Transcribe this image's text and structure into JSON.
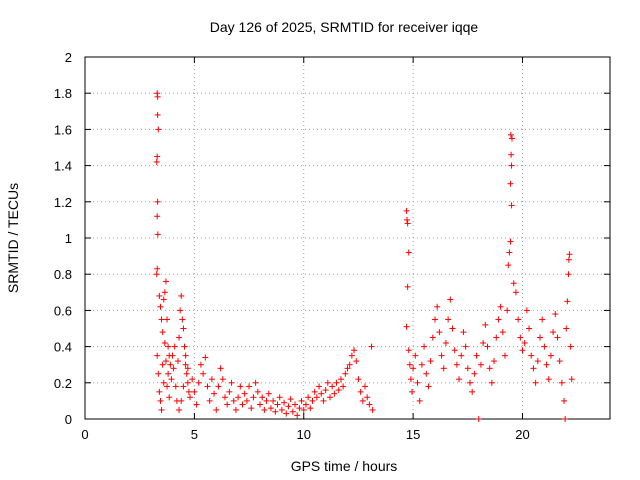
{
  "chart_data": {
    "type": "scatter",
    "title": "Day 126 of 2025, SRMTID for receiver iqqe",
    "xlabel": "GPS time / hours",
    "ylabel": "SRMTID / TECUs",
    "xlim": [
      0,
      24
    ],
    "ylim": [
      0,
      2
    ],
    "x_ticks": [
      0,
      5,
      10,
      15,
      20
    ],
    "y_ticks": [
      0,
      0.2,
      0.4,
      0.6,
      0.8,
      1,
      1.2,
      1.4,
      1.6,
      1.8,
      2
    ],
    "x_tick_labels": [
      "0",
      "5",
      "10",
      "15",
      "20"
    ],
    "y_tick_labels": [
      "0",
      "0.2",
      "0.4",
      "0.6",
      "0.8",
      "1",
      "1.2",
      "1.4",
      "1.6",
      "1.8",
      "2"
    ],
    "grid": true,
    "marker": "+",
    "series": [
      {
        "name": "SRMTID",
        "color": "#ff0000",
        "points": [
          [
            3.3,
            1.8
          ],
          [
            3.32,
            1.78
          ],
          [
            3.32,
            1.68
          ],
          [
            3.35,
            1.6
          ],
          [
            3.3,
            1.45
          ],
          [
            3.28,
            1.42
          ],
          [
            3.32,
            1.2
          ],
          [
            3.3,
            1.12
          ],
          [
            3.33,
            1.02
          ],
          [
            3.3,
            0.83
          ],
          [
            3.28,
            0.8
          ],
          [
            3.4,
            0.68
          ],
          [
            3.45,
            0.62
          ],
          [
            3.5,
            0.55
          ],
          [
            3.55,
            0.48
          ],
          [
            3.6,
            0.66
          ],
          [
            3.65,
            0.7
          ],
          [
            3.7,
            0.76
          ],
          [
            3.75,
            0.55
          ],
          [
            3.8,
            0.4
          ],
          [
            3.85,
            0.35
          ],
          [
            3.3,
            0.35
          ],
          [
            3.35,
            0.25
          ],
          [
            3.4,
            0.15
          ],
          [
            3.45,
            0.1
          ],
          [
            3.5,
            0.05
          ],
          [
            3.55,
            0.3
          ],
          [
            3.6,
            0.2
          ],
          [
            3.65,
            0.42
          ],
          [
            3.7,
            0.32
          ],
          [
            3.75,
            0.18
          ],
          [
            3.8,
            0.25
          ],
          [
            3.85,
            0.12
          ],
          [
            3.9,
            0.3
          ],
          [
            3.95,
            0.22
          ],
          [
            4.0,
            0.35
          ],
          [
            4.05,
            0.28
          ],
          [
            4.1,
            0.4
          ],
          [
            4.15,
            0.18
          ],
          [
            4.2,
            0.1
          ],
          [
            4.25,
            0.32
          ],
          [
            4.3,
            0.45
          ],
          [
            4.35,
            0.6
          ],
          [
            4.4,
            0.68
          ],
          [
            4.45,
            0.55
          ],
          [
            4.5,
            0.5
          ],
          [
            4.55,
            0.4
          ],
          [
            4.6,
            0.3
          ],
          [
            4.65,
            0.25
          ],
          [
            4.7,
            0.2
          ],
          [
            4.75,
            0.15
          ],
          [
            4.3,
            0.05
          ],
          [
            4.4,
            0.1
          ],
          [
            4.5,
            0.18
          ],
          [
            4.6,
            0.35
          ],
          [
            4.7,
            0.28
          ],
          [
            4.8,
            0.12
          ],
          [
            4.9,
            0.22
          ],
          [
            5.0,
            0.15
          ],
          [
            5.1,
            0.08
          ],
          [
            5.2,
            0.2
          ],
          [
            5.3,
            0.3
          ],
          [
            5.4,
            0.25
          ],
          [
            5.5,
            0.34
          ],
          [
            5.6,
            0.18
          ],
          [
            5.7,
            0.1
          ],
          [
            5.8,
            0.22
          ],
          [
            5.9,
            0.14
          ],
          [
            6.0,
            0.05
          ],
          [
            6.1,
            0.18
          ],
          [
            6.2,
            0.28
          ],
          [
            6.3,
            0.22
          ],
          [
            6.4,
            0.12
          ],
          [
            6.5,
            0.08
          ],
          [
            6.6,
            0.15
          ],
          [
            6.7,
            0.2
          ],
          [
            6.8,
            0.1
          ],
          [
            6.9,
            0.05
          ],
          [
            7.0,
            0.12
          ],
          [
            7.1,
            0.18
          ],
          [
            7.2,
            0.08
          ],
          [
            7.3,
            0.14
          ],
          [
            7.4,
            0.1
          ],
          [
            7.5,
            0.18
          ],
          [
            7.6,
            0.06
          ],
          [
            7.7,
            0.12
          ],
          [
            7.8,
            0.2
          ],
          [
            7.9,
            0.15
          ],
          [
            8.0,
            0.08
          ],
          [
            8.1,
            0.12
          ],
          [
            8.2,
            0.05
          ],
          [
            8.3,
            0.1
          ],
          [
            8.4,
            0.14
          ],
          [
            8.5,
            0.06
          ],
          [
            8.6,
            0.1
          ],
          [
            8.7,
            0.04
          ],
          [
            8.8,
            0.08
          ],
          [
            8.9,
            0.12
          ],
          [
            9.0,
            0.05
          ],
          [
            9.1,
            0.09
          ],
          [
            9.2,
            0.03
          ],
          [
            9.3,
            0.07
          ],
          [
            9.4,
            0.11
          ],
          [
            9.5,
            0.04
          ],
          [
            9.6,
            0.08
          ],
          [
            9.7,
            0.02
          ],
          [
            9.8,
            0.06
          ],
          [
            9.9,
            0.1
          ],
          [
            10.0,
            0.05
          ],
          [
            10.1,
            0.08
          ],
          [
            10.2,
            0.12
          ],
          [
            10.3,
            0.06
          ],
          [
            10.4,
            0.1
          ],
          [
            10.5,
            0.15
          ],
          [
            10.6,
            0.12
          ],
          [
            10.7,
            0.18
          ],
          [
            10.8,
            0.14
          ],
          [
            10.9,
            0.1
          ],
          [
            11.0,
            0.16
          ],
          [
            11.1,
            0.2
          ],
          [
            11.2,
            0.12
          ],
          [
            11.3,
            0.18
          ],
          [
            11.4,
            0.14
          ],
          [
            11.5,
            0.2
          ],
          [
            11.6,
            0.16
          ],
          [
            11.7,
            0.22
          ],
          [
            11.8,
            0.18
          ],
          [
            11.9,
            0.25
          ],
          [
            12.0,
            0.28
          ],
          [
            12.1,
            0.3
          ],
          [
            12.2,
            0.35
          ],
          [
            12.3,
            0.38
          ],
          [
            12.4,
            0.32
          ],
          [
            12.5,
            0.22
          ],
          [
            12.6,
            0.15
          ],
          [
            12.7,
            0.1
          ],
          [
            12.8,
            0.18
          ],
          [
            12.9,
            0.12
          ],
          [
            13.0,
            0.08
          ],
          [
            13.1,
            0.4
          ],
          [
            13.15,
            0.05
          ],
          [
            14.7,
            1.15
          ],
          [
            14.72,
            1.1
          ],
          [
            14.75,
            1.08
          ],
          [
            14.8,
            0.92
          ],
          [
            14.75,
            0.73
          ],
          [
            14.7,
            0.51
          ],
          [
            14.8,
            0.38
          ],
          [
            14.85,
            0.3
          ],
          [
            14.9,
            0.22
          ],
          [
            14.95,
            0.15
          ],
          [
            15.0,
            0.28
          ],
          [
            15.1,
            0.35
          ],
          [
            15.2,
            0.2
          ],
          [
            15.3,
            0.1
          ],
          [
            15.4,
            0.3
          ],
          [
            15.5,
            0.4
          ],
          [
            15.6,
            0.25
          ],
          [
            15.7,
            0.18
          ],
          [
            15.8,
            0.32
          ],
          [
            15.9,
            0.45
          ],
          [
            16.0,
            0.55
          ],
          [
            16.1,
            0.62
          ],
          [
            16.2,
            0.48
          ],
          [
            16.3,
            0.35
          ],
          [
            16.4,
            0.28
          ],
          [
            16.5,
            0.42
          ],
          [
            16.6,
            0.55
          ],
          [
            16.7,
            0.66
          ],
          [
            16.8,
            0.5
          ],
          [
            16.9,
            0.38
          ],
          [
            17.0,
            0.3
          ],
          [
            17.1,
            0.22
          ],
          [
            17.2,
            0.35
          ],
          [
            17.3,
            0.48
          ],
          [
            17.4,
            0.4
          ],
          [
            17.5,
            0.28
          ],
          [
            17.6,
            0.2
          ],
          [
            17.7,
            0.15
          ],
          [
            17.8,
            0.25
          ],
          [
            17.9,
            0.35
          ],
          [
            18.0,
            0.0
          ],
          [
            18.1,
            0.3
          ],
          [
            18.2,
            0.42
          ],
          [
            18.3,
            0.52
          ],
          [
            18.4,
            0.4
          ],
          [
            18.5,
            0.28
          ],
          [
            18.6,
            0.2
          ],
          [
            18.7,
            0.32
          ],
          [
            18.8,
            0.45
          ],
          [
            18.9,
            0.55
          ],
          [
            19.0,
            0.62
          ],
          [
            19.1,
            0.48
          ],
          [
            19.2,
            0.35
          ],
          [
            19.3,
            0.6
          ],
          [
            19.35,
            0.85
          ],
          [
            19.4,
            0.92
          ],
          [
            19.45,
            0.98
          ],
          [
            19.5,
            1.18
          ],
          [
            19.45,
            1.3
          ],
          [
            19.5,
            1.4
          ],
          [
            19.48,
            1.46
          ],
          [
            19.52,
            1.55
          ],
          [
            19.47,
            1.57
          ],
          [
            19.6,
            0.75
          ],
          [
            19.7,
            0.7
          ],
          [
            19.8,
            0.55
          ],
          [
            19.9,
            0.45
          ],
          [
            20.0,
            0.38
          ],
          [
            20.1,
            0.42
          ],
          [
            20.2,
            0.6
          ],
          [
            20.3,
            0.5
          ],
          [
            20.4,
            0.35
          ],
          [
            20.5,
            0.28
          ],
          [
            20.6,
            0.2
          ],
          [
            20.7,
            0.32
          ],
          [
            20.8,
            0.45
          ],
          [
            20.9,
            0.55
          ],
          [
            21.0,
            0.4
          ],
          [
            21.1,
            0.3
          ],
          [
            21.2,
            0.22
          ],
          [
            21.3,
            0.35
          ],
          [
            21.4,
            0.48
          ],
          [
            21.5,
            0.58
          ],
          [
            21.6,
            0.45
          ],
          [
            21.7,
            0.32
          ],
          [
            21.8,
            0.2
          ],
          [
            21.9,
            0.1
          ],
          [
            21.95,
            0.0
          ],
          [
            22.0,
            0.5
          ],
          [
            22.05,
            0.65
          ],
          [
            22.1,
            0.8
          ],
          [
            22.12,
            0.88
          ],
          [
            22.15,
            0.91
          ],
          [
            22.2,
            0.4
          ],
          [
            22.25,
            0.22
          ]
        ]
      }
    ]
  }
}
